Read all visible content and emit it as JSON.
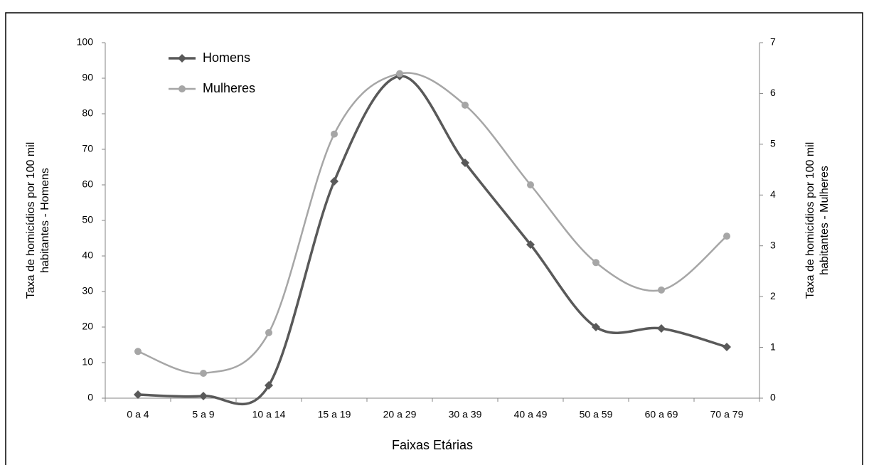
{
  "chart_data": {
    "type": "line",
    "categories": [
      "0 a 4",
      "5 a 9",
      "10 a 14",
      "15 a 19",
      "20 a 29",
      "30 a 39",
      "40 a 49",
      "50 a 59",
      "60 a 69",
      "70 a 79"
    ],
    "series": [
      {
        "name": "Homens",
        "color": "#595959",
        "marker": "diamond",
        "values": [
          1.0,
          0.6,
          3.6,
          61,
          90.6,
          66.2,
          43.2,
          20,
          19.6,
          14.4
        ]
      },
      {
        "name": "Mulheres",
        "color": "#a6a6a6",
        "marker": "circle",
        "axis": "y2",
        "values": [
          0.92,
          0.49,
          1.29,
          5.2,
          6.39,
          5.77,
          4.2,
          2.67,
          2.13,
          3.19
        ]
      }
    ],
    "ylim": [
      0,
      100
    ],
    "yticks": [
      0,
      10,
      20,
      30,
      40,
      50,
      60,
      70,
      80,
      90,
      100
    ],
    "y2lim": [
      0,
      7
    ],
    "y2ticks": [
      0,
      1,
      2,
      3,
      4,
      5,
      6,
      7
    ],
    "xlabel": "Faixas Etárias",
    "ylabel": [
      "Taxa de homicídios por 100 mil",
      "habitantes - Homens"
    ],
    "y2label": [
      "Taxa de homicídios por 100 mil",
      "habitantes - Mulheres"
    ],
    "smooth": true,
    "legend": "top-left"
  }
}
